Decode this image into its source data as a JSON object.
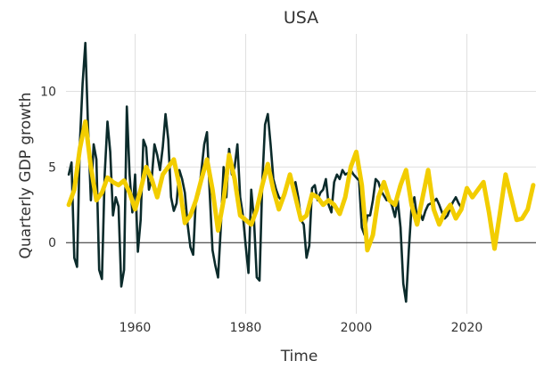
{
  "chart_data": {
    "type": "line",
    "title": "USA",
    "xlabel": "Time",
    "ylabel": "Quarterly GDP growth",
    "xlim": [
      1947.5,
      2032.5
    ],
    "ylim": [
      -4.7,
      13.8
    ],
    "x_ticks": [
      1960,
      1980,
      2000,
      2020
    ],
    "x_tick_labels": [
      "1960",
      "1980",
      "2000",
      "2020"
    ],
    "y_ticks": [
      0,
      5,
      10
    ],
    "y_tick_labels": [
      "0",
      "5",
      "10"
    ],
    "grid": true,
    "legend": "none",
    "colors": {
      "actual": "#0b2b2b",
      "forecast": "#f2cd00",
      "grid": "#e0e0e0",
      "zero_line": "#222222"
    },
    "series": [
      {
        "role": "actual",
        "x": [
          1948,
          1948.5,
          1949,
          1949.5,
          1950,
          1950.5,
          1951,
          1951.5,
          1952,
          1952.5,
          1953,
          1953.5,
          1954,
          1954.5,
          1955,
          1955.5,
          1956,
          1956.5,
          1957,
          1957.5,
          1958,
          1958.5,
          1959,
          1959.5,
          1960,
          1960.5,
          1961,
          1961.5,
          1962,
          1962.5,
          1963,
          1963.5,
          1964,
          1964.5,
          1965,
          1965.5,
          1966,
          1966.5,
          1967,
          1967.5,
          1968,
          1968.5,
          1969,
          1969.5,
          1970,
          1970.5,
          1971,
          1971.5,
          1972,
          1972.5,
          1973,
          1973.5,
          1974,
          1974.5,
          1975,
          1975.5,
          1976,
          1976.5,
          1977,
          1977.5,
          1978,
          1978.5,
          1979,
          1979.5,
          1980,
          1980.5,
          1981,
          1981.5,
          1982,
          1982.5,
          1983,
          1983.5,
          1984,
          1984.5,
          1985,
          1985.5,
          1986,
          1986.5,
          1987,
          1987.5,
          1988,
          1988.5,
          1989,
          1989.5,
          1990,
          1990.5,
          1991,
          1991.5,
          1992,
          1992.5,
          1993,
          1993.5,
          1994,
          1994.5,
          1995,
          1995.5,
          1996,
          1996.5,
          1997,
          1997.5,
          1998,
          1998.5,
          1999,
          1999.5,
          2000,
          2000.5,
          2001,
          2001.5,
          2002,
          2002.5,
          2003,
          2003.5,
          2004,
          2004.5,
          2005,
          2005.5,
          2006,
          2006.5,
          2007,
          2007.5,
          2008,
          2008.5,
          2009,
          2009.5,
          2010,
          2010.5,
          2011,
          2011.5,
          2012,
          2012.5,
          2013,
          2013.5,
          2014,
          2014.5,
          2015,
          2015.5,
          2016,
          2016.5,
          2017,
          2017.5,
          2018,
          2018.5,
          2019
        ],
        "y": [
          4.5,
          5.3,
          -1.0,
          -1.6,
          6.5,
          10.5,
          13.2,
          7.5,
          2.8,
          6.5,
          5.5,
          -1.8,
          -2.4,
          4.5,
          8.0,
          6.0,
          1.8,
          3.0,
          2.4,
          -2.9,
          -1.8,
          9.0,
          4.5,
          2.0,
          4.5,
          -0.6,
          1.5,
          6.8,
          6.3,
          3.5,
          4.2,
          6.5,
          5.8,
          4.8,
          6.3,
          8.5,
          6.8,
          3.0,
          2.1,
          2.6,
          4.8,
          4.2,
          3.3,
          1.2,
          -0.3,
          -0.8,
          3.0,
          3.2,
          4.8,
          6.5,
          7.3,
          3.2,
          -0.5,
          -1.5,
          -2.3,
          1.0,
          5.0,
          3.0,
          6.2,
          4.5,
          5.0,
          6.5,
          3.0,
          1.8,
          -0.2,
          -2.0,
          3.5,
          1.5,
          -2.3,
          -2.5,
          4.0,
          7.8,
          8.5,
          6.5,
          4.2,
          3.5,
          3.0,
          2.8,
          3.3,
          4.0,
          4.2,
          3.6,
          4.0,
          3.0,
          1.5,
          1.2,
          -1.0,
          -0.2,
          3.6,
          3.8,
          2.8,
          3.3,
          3.5,
          4.2,
          2.5,
          2.0,
          4.0,
          4.5,
          4.2,
          4.8,
          4.5,
          4.6,
          4.8,
          4.5,
          4.3,
          4.1,
          1.0,
          0.5,
          1.8,
          1.8,
          2.8,
          4.2,
          4.0,
          3.4,
          3.1,
          2.8,
          2.9,
          2.4,
          1.7,
          2.8,
          1.0,
          -2.7,
          -3.9,
          -0.5,
          2.4,
          3.0,
          1.6,
          2.0,
          1.5,
          2.1,
          2.5,
          2.6,
          2.7,
          2.9,
          2.5,
          2.0,
          1.6,
          1.8,
          2.3,
          2.7,
          3.0,
          2.6,
          2.3
        ]
      },
      {
        "role": "forecast",
        "x": [
          1948,
          1949,
          1950,
          1951,
          1952,
          1953,
          1954,
          1955,
          1956,
          1957,
          1958,
          1959,
          1960,
          1961,
          1962,
          1963,
          1964,
          1965,
          1966,
          1967,
          1968,
          1969,
          1970,
          1971,
          1972,
          1973,
          1974,
          1975,
          1976,
          1977,
          1978,
          1979,
          1980,
          1981,
          1982,
          1983,
          1984,
          1985,
          1986,
          1987,
          1988,
          1989,
          1990,
          1991,
          1992,
          1993,
          1994,
          1995,
          1996,
          1997,
          1998,
          1999,
          2000,
          2001,
          2002,
          2003,
          2004,
          2005,
          2006,
          2007,
          2008,
          2009,
          2010,
          2011,
          2012,
          2013,
          2014,
          2015,
          2016,
          2017,
          2018,
          2019,
          2020,
          2021,
          2022,
          2023,
          2024,
          2025,
          2026,
          2027,
          2028,
          2029,
          2030,
          2031,
          2032
        ],
        "y": [
          2.5,
          3.5,
          6.2,
          8.0,
          5.0,
          2.8,
          3.3,
          4.3,
          4.0,
          3.8,
          4.1,
          3.3,
          2.2,
          3.5,
          5.0,
          4.2,
          3.0,
          4.5,
          5.0,
          5.5,
          3.8,
          1.3,
          1.8,
          2.8,
          4.2,
          5.5,
          3.5,
          0.8,
          2.8,
          5.8,
          4.2,
          1.8,
          1.5,
          1.2,
          2.2,
          3.8,
          5.2,
          3.5,
          2.2,
          3.2,
          4.5,
          3.0,
          1.5,
          1.8,
          3.2,
          3.0,
          2.5,
          2.8,
          2.5,
          1.9,
          3.0,
          5.0,
          6.0,
          3.8,
          -0.5,
          0.5,
          3.0,
          4.0,
          2.8,
          2.5,
          3.8,
          4.8,
          2.5,
          1.2,
          3.0,
          4.8,
          2.2,
          1.2,
          2.0,
          2.5,
          1.6,
          2.2,
          3.6,
          3.0,
          3.5,
          4.0,
          2.0,
          -0.4,
          2.0,
          4.5,
          3.0,
          1.5,
          1.6,
          2.2,
          3.8
        ]
      }
    ]
  }
}
